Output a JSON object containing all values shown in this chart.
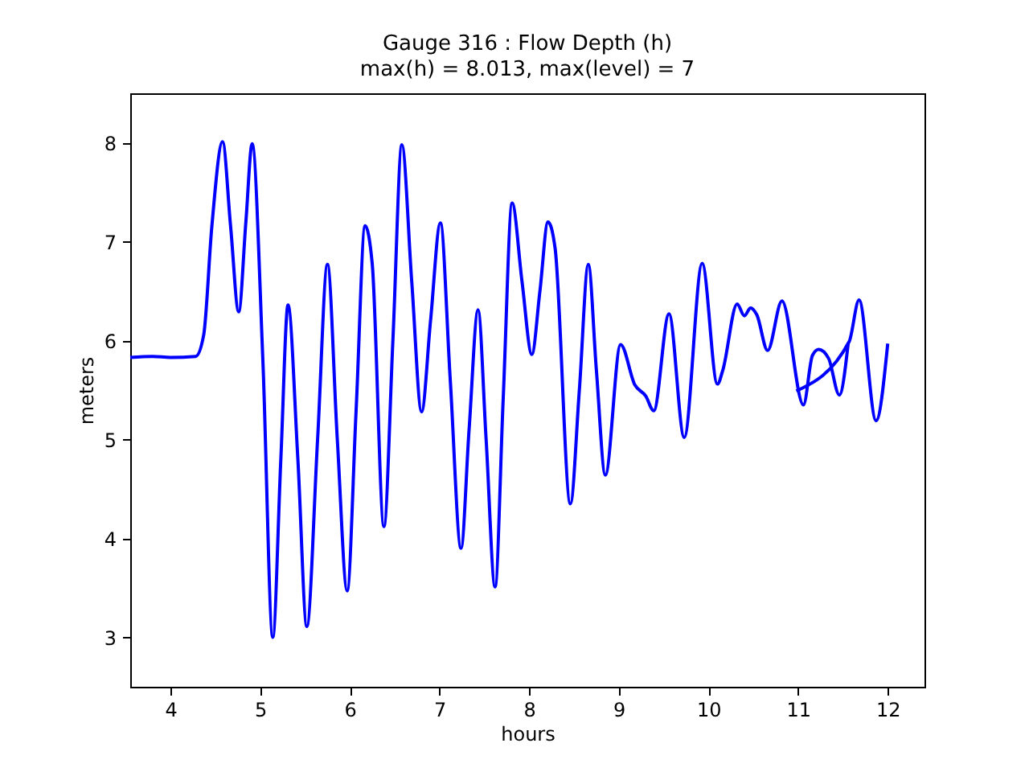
{
  "chart_data": {
    "type": "line",
    "title": "Gauge 316 : Flow Depth (h)",
    "subtitle": "max(h) =   8.013,    max(level) = 7",
    "xlabel": "hours",
    "ylabel": "meters",
    "xlim": [
      3.55,
      12.41
    ],
    "ylim": [
      2.5,
      8.5
    ],
    "xticks": [
      4,
      5,
      6,
      7,
      8,
      9,
      10,
      11,
      12
    ],
    "yticks": [
      3,
      4,
      5,
      6,
      7,
      8
    ],
    "grid": false,
    "legend": false,
    "marker": "none",
    "line_style": "solid",
    "series": [
      {
        "color": "#0000ff",
        "x": [
          3.55,
          3.8,
          4.0,
          4.28,
          4.37,
          4.46,
          4.58,
          4.67,
          4.76,
          4.84,
          4.91,
          5.03,
          5.14,
          5.23,
          5.31,
          5.42,
          5.52,
          5.64,
          5.75,
          5.86,
          5.97,
          6.07,
          6.17,
          6.25,
          6.38,
          6.48,
          6.58,
          6.69,
          6.8,
          6.9,
          7.01,
          7.12,
          7.24,
          7.33,
          7.43,
          7.52,
          7.62,
          7.71,
          7.81,
          7.92,
          8.03,
          8.12,
          8.21,
          8.29,
          8.46,
          8.56,
          8.66,
          8.75,
          8.85,
          9.02,
          9.18,
          9.3,
          9.39,
          9.56,
          9.73,
          9.93,
          10.1,
          10.16,
          10.32,
          10.4,
          10.47,
          10.54,
          10.66,
          10.82,
          11.06,
          11.16,
          11.23,
          11.34,
          11.46,
          11.56
        ],
        "values": [
          5.83,
          5.84,
          5.83,
          5.84,
          6.06,
          7.15,
          8.01,
          7.15,
          6.29,
          7.2,
          7.99,
          5.79,
          3.0,
          4.8,
          6.36,
          4.8,
          3.11,
          5.0,
          6.77,
          5.0,
          3.47,
          5.3,
          7.16,
          6.77,
          4.12,
          6.0,
          7.98,
          6.6,
          5.28,
          6.2,
          7.19,
          5.6,
          3.9,
          5.1,
          6.31,
          5.0,
          3.51,
          5.4,
          7.39,
          6.6,
          5.86,
          6.5,
          7.2,
          6.93,
          4.35,
          5.5,
          6.77,
          5.7,
          4.64,
          5.96,
          5.55,
          5.44,
          5.29,
          6.27,
          5.02,
          6.78,
          5.56,
          5.7,
          6.37,
          6.25,
          6.33,
          6.26,
          5.9,
          6.4,
          5.35,
          5.85,
          5.91,
          5.82,
          5.45,
          5.98
        ]
      },
      {
        "color": "#0000ff",
        "x": [
          10.98,
          11.57,
          11.68,
          11.87,
          12.0
        ],
        "values": [
          5.49,
          5.99,
          6.41,
          5.19,
          5.97
        ]
      }
    ]
  }
}
